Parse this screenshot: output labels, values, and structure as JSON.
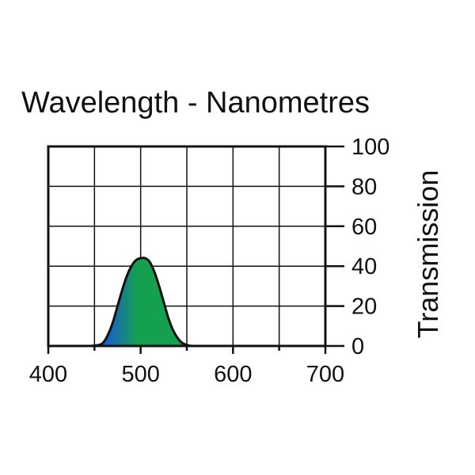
{
  "chart_data": {
    "type": "area",
    "title": "Wavelength - Nanometres",
    "ylabel": "Transmission",
    "xlim": [
      400,
      700
    ],
    "ylim": [
      0,
      100
    ],
    "x_ticks": [
      400,
      500,
      600,
      700
    ],
    "y_ticks": [
      0,
      20,
      40,
      60,
      80,
      100
    ],
    "grid": true,
    "y_axis_side": "right",
    "fill_colors": {
      "blue": "#1a5fd0",
      "green": "#14a04e"
    },
    "series": [
      {
        "x": [
          445,
          455,
          460,
          465,
          470,
          475,
          480,
          485,
          490,
          495,
          500,
          505,
          510,
          515,
          520,
          525,
          530,
          535,
          540,
          545,
          550,
          555
        ],
        "values": [
          0,
          0.5,
          2,
          6,
          12,
          20,
          28,
          35,
          40,
          43,
          44,
          44,
          42,
          37,
          30,
          22,
          14,
          8,
          4,
          1.5,
          0.5,
          0
        ]
      }
    ]
  }
}
